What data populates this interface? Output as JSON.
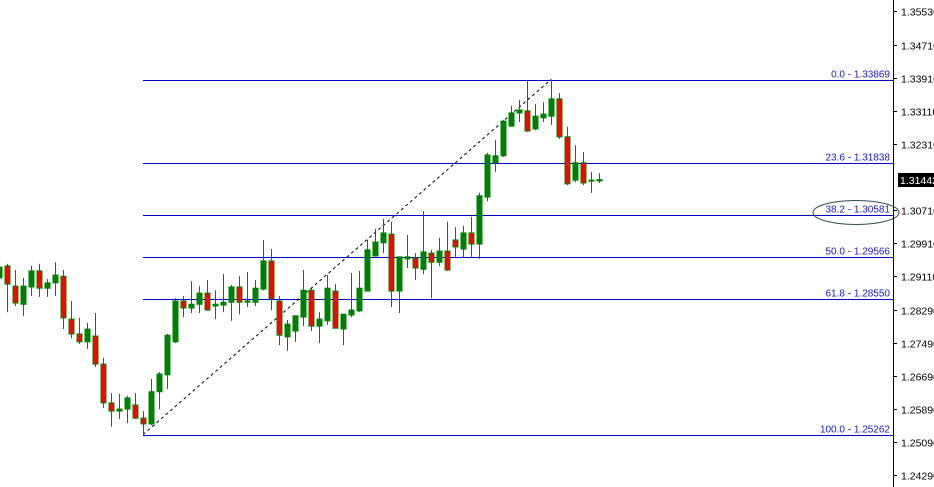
{
  "chart_data": {
    "type": "candlestick",
    "ylim": [
      1.2405,
      1.3565
    ],
    "y_ticks": [
      "1.35530",
      "1.34710",
      "1.33910",
      "1.33110",
      "1.32310",
      "1.30710",
      "1.29910",
      "1.29110",
      "1.28290",
      "1.27490",
      "1.26690",
      "1.25890",
      "1.25090",
      "1.24290"
    ],
    "current_price": "1.31442",
    "grid": false,
    "colors": {
      "bull_body": "#008000",
      "bear_body": "#ff0000",
      "wick": "#008000",
      "fib_line": "#0000cc",
      "fib_text": "#1a1ad0",
      "trendline": "#000000",
      "ellipse": "#2f4f4f",
      "current_bg": "#000000"
    },
    "candles_ohlc": [
      [
        1.2906,
        1.2937,
        1.2896,
        1.2932
      ],
      [
        1.2935,
        1.294,
        1.2823,
        1.2891
      ],
      [
        1.2886,
        1.2925,
        1.2838,
        1.2845
      ],
      [
        1.2842,
        1.2906,
        1.2814,
        1.2886
      ],
      [
        1.2884,
        1.2935,
        1.2862,
        1.2923
      ],
      [
        1.2923,
        1.294,
        1.286,
        1.2881
      ],
      [
        1.2881,
        1.2903,
        1.286,
        1.2894
      ],
      [
        1.2894,
        1.2944,
        1.2862,
        1.2913
      ],
      [
        1.291,
        1.2925,
        1.2782,
        1.2809
      ],
      [
        1.2806,
        1.285,
        1.276,
        1.277
      ],
      [
        1.277,
        1.2809,
        1.2746,
        1.2751
      ],
      [
        1.2751,
        1.2797,
        1.2734,
        1.2782
      ],
      [
        1.2765,
        1.2821,
        1.269,
        1.2697
      ],
      [
        1.2697,
        1.2712,
        1.2591,
        1.2603
      ],
      [
        1.2603,
        1.2627,
        1.2545,
        1.2583
      ],
      [
        1.2583,
        1.2625,
        1.2564,
        1.2588
      ],
      [
        1.2588,
        1.262,
        1.2554,
        1.2615
      ],
      [
        1.2598,
        1.2627,
        1.2564,
        1.2566
      ],
      [
        1.2566,
        1.2583,
        1.2526,
        1.2552
      ],
      [
        1.2552,
        1.2661,
        1.2549,
        1.263
      ],
      [
        1.263,
        1.2678,
        1.2588,
        1.2673
      ],
      [
        1.2671,
        1.277,
        1.2637,
        1.2767
      ],
      [
        1.2751,
        1.2857,
        1.2748,
        1.285
      ],
      [
        1.285,
        1.2862,
        1.2811,
        1.2833
      ],
      [
        1.2833,
        1.2898,
        1.2821,
        1.2842
      ],
      [
        1.2842,
        1.2886,
        1.2821,
        1.2869
      ],
      [
        1.2869,
        1.2901,
        1.2828,
        1.2828
      ],
      [
        1.2838,
        1.2876,
        1.2806,
        1.2842
      ],
      [
        1.284,
        1.2915,
        1.2823,
        1.2847
      ],
      [
        1.2847,
        1.2889,
        1.2802,
        1.2884
      ],
      [
        1.2884,
        1.291,
        1.2818,
        1.2847
      ],
      [
        1.2847,
        1.292,
        1.2835,
        1.285
      ],
      [
        1.2847,
        1.2901,
        1.2838,
        1.2881
      ],
      [
        1.2879,
        1.2998,
        1.2876,
        1.2947
      ],
      [
        1.2947,
        1.2976,
        1.2828,
        1.2855
      ],
      [
        1.285,
        1.2862,
        1.2743,
        1.2767
      ],
      [
        1.2763,
        1.2804,
        1.2729,
        1.2794
      ],
      [
        1.2777,
        1.2814,
        1.2751,
        1.2814
      ],
      [
        1.2811,
        1.2925,
        1.2789,
        1.2876
      ],
      [
        1.2876,
        1.2881,
        1.2777,
        1.2789
      ],
      [
        1.2789,
        1.2823,
        1.2748,
        1.2806
      ],
      [
        1.2802,
        1.2913,
        1.2792,
        1.2881
      ],
      [
        1.2874,
        1.2891,
        1.2784,
        1.2784
      ],
      [
        1.2782,
        1.2818,
        1.2743,
        1.2818
      ],
      [
        1.2816,
        1.2918,
        1.2811,
        1.2828
      ],
      [
        1.2826,
        1.2923,
        1.2823,
        1.2881
      ],
      [
        1.2874,
        1.2998,
        1.2874,
        1.2974
      ],
      [
        1.2959,
        1.3025,
        1.2959,
        1.2993
      ],
      [
        1.2991,
        1.3049,
        1.2966,
        1.3015
      ],
      [
        1.3012,
        1.3042,
        1.2835,
        1.2874
      ],
      [
        1.2874,
        1.2957,
        1.2821,
        1.2957
      ],
      [
        1.2952,
        1.301,
        1.293,
        1.2957
      ],
      [
        1.2954,
        1.2966,
        1.2901,
        1.293
      ],
      [
        1.2927,
        1.3068,
        1.2915,
        1.2969
      ],
      [
        1.2966,
        1.2974,
        1.2857,
        1.2944
      ],
      [
        1.2944,
        1.3003,
        1.2935,
        1.2971
      ],
      [
        1.2971,
        1.3042,
        1.2923,
        1.2925
      ],
      [
        1.2998,
        1.3029,
        1.2957,
        1.2981
      ],
      [
        1.2976,
        1.3032,
        1.2954,
        1.3015
      ],
      [
        1.3015,
        1.3054,
        1.2957,
        1.2988
      ],
      [
        1.2988,
        1.3112,
        1.2952,
        1.3105
      ],
      [
        1.3102,
        1.3209,
        1.3092,
        1.3204
      ],
      [
        1.3185,
        1.324,
        1.3163,
        1.3202
      ],
      [
        1.3202,
        1.3289,
        1.3199,
        1.3286
      ],
      [
        1.3274,
        1.3323,
        1.3272,
        1.3306
      ],
      [
        1.3306,
        1.3337,
        1.3284,
        1.3313
      ],
      [
        1.3311,
        1.3383,
        1.326,
        1.3262
      ],
      [
        1.3267,
        1.3328,
        1.3264,
        1.3298
      ],
      [
        1.3294,
        1.3332,
        1.3284,
        1.3303
      ],
      [
        1.3298,
        1.3387,
        1.3277,
        1.334
      ],
      [
        1.334,
        1.3354,
        1.3243,
        1.3248
      ],
      [
        1.3248,
        1.3272,
        1.3131,
        1.3134
      ],
      [
        1.3143,
        1.3228,
        1.3138,
        1.3185
      ],
      [
        1.3185,
        1.3211,
        1.3131,
        1.3136
      ],
      [
        1.3141,
        1.3163,
        1.3112,
        1.3143
      ],
      [
        1.3141,
        1.316,
        1.3136,
        1.31442
      ]
    ],
    "fibonacci": {
      "from": {
        "candle_index": 18,
        "price": 1.25262
      },
      "to": {
        "candle_index": 69,
        "price": 1.33869
      },
      "levels": [
        {
          "label": "0.0 - 1.33869",
          "price": 1.33869
        },
        {
          "label": "23.6 - 1.31838",
          "price": 1.31838
        },
        {
          "label": "38.2 - 1.30581",
          "price": 1.30581,
          "circled": true
        },
        {
          "label": "50.0 - 1.29566",
          "price": 1.29566
        },
        {
          "label": "61.8 - 1.28550",
          "price": 1.2855
        },
        {
          "label": "100.0 - 1.25262",
          "price": 1.25262
        }
      ]
    }
  }
}
